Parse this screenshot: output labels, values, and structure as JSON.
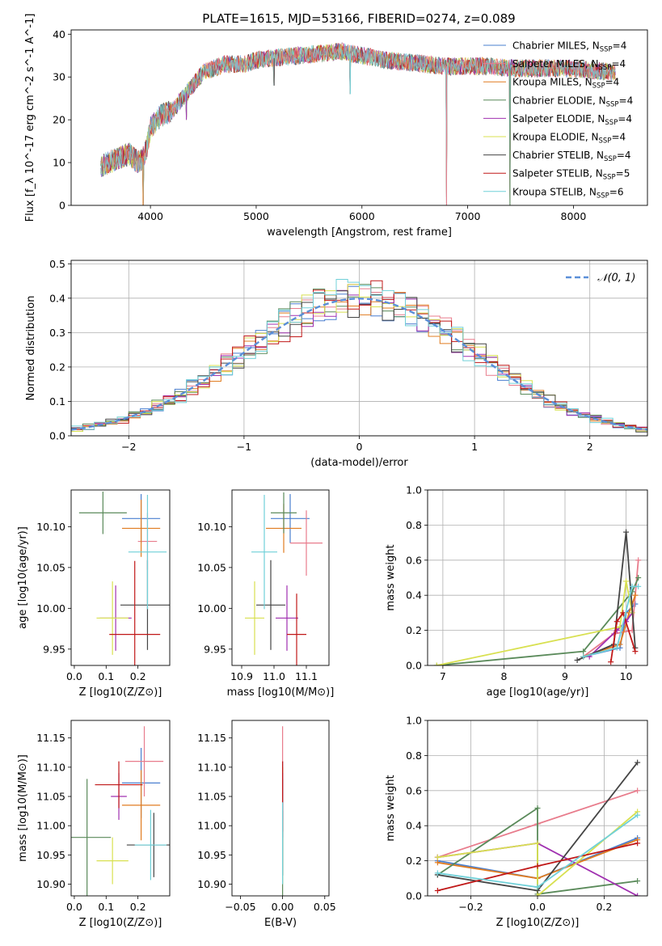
{
  "figure_title": "PLATE=1615, MJD=53166, FIBERID=0274, z=0.089",
  "colors": {
    "series": [
      "#4a7fcf",
      "#e87c8c",
      "#e07c20",
      "#5a8a5a",
      "#a030b0",
      "#d8e050",
      "#444444",
      "#c01818",
      "#70d0d8"
    ],
    "normal_curve": "#5b8fd8",
    "grid": "#b0b0b0"
  },
  "legend_spectrum": [
    {
      "label": "Chabrier MILES, N",
      "sub": "SSP",
      "suffix": "=4"
    },
    {
      "label": "Salpeter MILES, N",
      "sub": "SSP",
      "suffix": "=4"
    },
    {
      "label": "Kroupa MILES, N",
      "sub": "SSP",
      "suffix": "=4"
    },
    {
      "label": "Chabrier ELODIE, N",
      "sub": "SSP",
      "suffix": "=4"
    },
    {
      "label": "Salpeter ELODIE, N",
      "sub": "SSP",
      "suffix": "=4"
    },
    {
      "label": "Kroupa ELODIE, N",
      "sub": "SSP",
      "suffix": "=4"
    },
    {
      "label": "Chabrier STELIB, N",
      "sub": "SSP",
      "suffix": "=4"
    },
    {
      "label": "Salpeter STELIB, N",
      "sub": "SSP",
      "suffix": "=5"
    },
    {
      "label": "Kroupa STELIB, N",
      "sub": "SSP",
      "suffix": "=6"
    }
  ],
  "legend_residual": {
    "label": "𝒩(0, 1)"
  },
  "chart_data": [
    {
      "id": "spectrum",
      "type": "line",
      "title": "PLATE=1615, MJD=53166, FIBERID=0274, z=0.089",
      "xlabel": "wavelength [Angstrom, rest frame]",
      "ylabel": "Flux [f_λ 10^-17 erg cm^-2 s^-1 A^-1]",
      "xlim": [
        3250,
        8700
      ],
      "ylim": [
        0,
        41
      ],
      "xticks": [
        "4000",
        "5000",
        "6000",
        "7000",
        "8000"
      ],
      "yticks": [
        "0",
        "10",
        "20",
        "30",
        "40"
      ],
      "grid": false,
      "legend": "top-right",
      "envelope": {
        "x": [
          3530,
          3600,
          3700,
          3800,
          3880,
          3930,
          3970,
          4000,
          4100,
          4200,
          4300,
          4400,
          4500,
          4600,
          4700,
          4800,
          4900,
          5000,
          5200,
          5400,
          5600,
          5800,
          5900,
          6000,
          6200,
          6400,
          6600,
          6800,
          7000,
          7200,
          7400,
          7600,
          7800,
          8000,
          8200,
          8400
        ],
        "y": [
          9,
          10,
          11,
          12,
          10,
          11,
          14,
          18,
          21,
          22,
          25,
          28,
          31,
          32,
          33,
          33,
          33,
          34,
          34.5,
          35,
          35.5,
          36,
          35.5,
          35,
          34,
          33.5,
          33,
          32.5,
          32.5,
          32.5,
          32,
          32,
          32,
          32,
          31.5,
          31
        ]
      },
      "spikes_down": [
        {
          "x": 3930,
          "y": 0
        },
        {
          "x": 4340,
          "y": 20
        },
        {
          "x": 5170,
          "y": 28
        },
        {
          "x": 5890,
          "y": 26
        },
        {
          "x": 6800,
          "y": 0
        },
        {
          "x": 7400,
          "y": 0
        }
      ]
    },
    {
      "id": "residuals",
      "type": "histogram",
      "xlabel": "(data-model)/error",
      "ylabel": "Normed distribution",
      "xlim": [
        -2.5,
        2.5
      ],
      "ylim": [
        0,
        0.51
      ],
      "xticks": [
        "-2",
        "-1",
        "0",
        "1",
        "2"
      ],
      "yticks": [
        "0.0",
        "0.1",
        "0.2",
        "0.3",
        "0.4",
        "0.5"
      ],
      "grid": true,
      "legend": "top-right",
      "bin_width": 0.1,
      "curve": "normal(0,1)"
    },
    {
      "id": "age_vs_Z",
      "type": "errorbar",
      "xlabel": "Z [log10(Z/Z⊙)]",
      "ylabel": "age [log10(age/yr)]",
      "xlim": [
        -0.01,
        0.3
      ],
      "ylim": [
        9.93,
        10.145
      ],
      "xticks": [
        "0.0",
        "0.1",
        "0.2"
      ],
      "yticks": [
        "9.95",
        "10.00",
        "10.05",
        "10.10"
      ],
      "points": [
        {
          "x": 0.21,
          "y": 10.11,
          "xerr": 0.06,
          "yerr": 0.03
        },
        {
          "x": 0.23,
          "y": 10.082,
          "xerr": 0.03,
          "yerr": 0.035
        },
        {
          "x": 0.21,
          "y": 10.098,
          "xerr": 0.06,
          "yerr": 0.035
        },
        {
          "x": 0.09,
          "y": 10.117,
          "xerr": 0.075,
          "yerr": 0.026
        },
        {
          "x": 0.13,
          "y": 9.988,
          "xerr": 0.05,
          "yerr": 0.04
        },
        {
          "x": 0.12,
          "y": 9.988,
          "xerr": 0.05,
          "yerr": 0.045
        },
        {
          "x": 0.23,
          "y": 10.004,
          "xerr": 0.085,
          "yerr": 0.055
        },
        {
          "x": 0.19,
          "y": 9.968,
          "xerr": 0.08,
          "yerr": 0.09
        },
        {
          "x": 0.23,
          "y": 10.069,
          "xerr": 0.06,
          "yerr": 0.07
        }
      ]
    },
    {
      "id": "age_vs_mass",
      "type": "errorbar",
      "xlabel": "mass [log10(M/M⊙)]",
      "ylabel": "",
      "xlim": [
        10.87,
        11.17
      ],
      "ylim": [
        9.93,
        10.145
      ],
      "xticks": [
        "10.9",
        "11.0",
        "11.1"
      ],
      "yticks": [
        "9.95",
        "10.00",
        "10.05",
        "10.10"
      ],
      "points": [
        {
          "x": 11.05,
          "y": 10.11,
          "xerr": 0.06,
          "yerr": 0.03
        },
        {
          "x": 11.1,
          "y": 10.08,
          "xerr": 0.05,
          "yerr": 0.04
        },
        {
          "x": 11.03,
          "y": 10.098,
          "xerr": 0.055,
          "yerr": 0.03
        },
        {
          "x": 11.03,
          "y": 10.117,
          "xerr": 0.04,
          "yerr": 0.025
        },
        {
          "x": 11.04,
          "y": 9.988,
          "xerr": 0.035,
          "yerr": 0.04
        },
        {
          "x": 10.94,
          "y": 9.988,
          "xerr": 0.03,
          "yerr": 0.045
        },
        {
          "x": 10.99,
          "y": 10.004,
          "xerr": 0.045,
          "yerr": 0.055
        },
        {
          "x": 11.07,
          "y": 9.968,
          "xerr": 0.03,
          "yerr": 0.05
        },
        {
          "x": 10.97,
          "y": 10.069,
          "xerr": 0.04,
          "yerr": 0.07
        }
      ]
    },
    {
      "id": "mass_weight_vs_age",
      "type": "line",
      "xlabel": "age [log10(age/yr)]",
      "ylabel": "mass weight",
      "xlim": [
        6.75,
        10.35
      ],
      "ylim": [
        0,
        1.0
      ],
      "xticks": [
        "7",
        "8",
        "9",
        "10"
      ],
      "yticks": [
        "0.0",
        "0.2",
        "0.4",
        "0.6",
        "0.8",
        "1.0"
      ],
      "grid": true,
      "series": [
        {
          "x": [
            9.3,
            9.9,
            10.0,
            10.15
          ],
          "y": [
            0.05,
            0.1,
            0.3,
            0.35
          ]
        },
        {
          "x": [
            9.3,
            9.8,
            10.1,
            10.2
          ],
          "y": [
            0.05,
            0.18,
            0.2,
            0.6
          ]
        },
        {
          "x": [
            9.3,
            9.9,
            10.05,
            10.15
          ],
          "y": [
            0.05,
            0.12,
            0.3,
            0.4
          ]
        },
        {
          "x": [
            6.9,
            9.3,
            10.1,
            10.2
          ],
          "y": [
            0.0,
            0.08,
            0.42,
            0.5
          ]
        },
        {
          "x": [
            9.4,
            9.85,
            10.0,
            10.1
          ],
          "y": [
            0.05,
            0.2,
            0.25,
            0.3
          ]
        },
        {
          "x": [
            6.9,
            9.9,
            10.0,
            10.1
          ],
          "y": [
            0.0,
            0.22,
            0.48,
            0.3
          ]
        },
        {
          "x": [
            9.2,
            9.8,
            10.0,
            10.15
          ],
          "y": [
            0.03,
            0.12,
            0.76,
            0.1
          ]
        },
        {
          "x": [
            9.75,
            9.85,
            9.95,
            10.15
          ],
          "y": [
            0.02,
            0.25,
            0.3,
            0.08
          ]
        },
        {
          "x": [
            9.3,
            9.85,
            10.1,
            10.2
          ],
          "y": [
            0.05,
            0.1,
            0.45,
            0.45
          ]
        }
      ]
    },
    {
      "id": "mass_vs_Z",
      "type": "errorbar",
      "xlabel": "Z [log10(Z/Z⊙)]",
      "ylabel": "mass [log10(M/M⊙)]",
      "xlim": [
        -0.01,
        0.3
      ],
      "ylim": [
        10.88,
        11.18
      ],
      "xticks": [
        "0.0",
        "0.1",
        "0.2"
      ],
      "yticks": [
        "10.90",
        "10.95",
        "11.00",
        "11.05",
        "11.10",
        "11.15"
      ],
      "points": [
        {
          "x": 0.21,
          "y": 11.073,
          "xerr": 0.06,
          "yerr": 0.06
        },
        {
          "x": 0.22,
          "y": 11.11,
          "xerr": 0.06,
          "yerr": 0.06
        },
        {
          "x": 0.21,
          "y": 11.035,
          "xerr": 0.06,
          "yerr": 0.06
        },
        {
          "x": 0.04,
          "y": 10.98,
          "xerr": 0.075,
          "yerr": 0.1
        },
        {
          "x": 0.14,
          "y": 11.05,
          "xerr": 0.025,
          "yerr": 0.04
        },
        {
          "x": 0.12,
          "y": 10.94,
          "xerr": 0.05,
          "yerr": 0.04
        },
        {
          "x": 0.25,
          "y": 10.967,
          "xerr": 0.085,
          "yerr": 0.055
        },
        {
          "x": 0.14,
          "y": 11.07,
          "xerr": 0.075,
          "yerr": 0.04
        },
        {
          "x": 0.24,
          "y": 10.967,
          "xerr": 0.05,
          "yerr": 0.06
        }
      ]
    },
    {
      "id": "mass_vs_ebv",
      "type": "errorbar",
      "xlabel": "E(B-V)",
      "ylabel": "",
      "xlim": [
        -0.06,
        0.055
      ],
      "ylim": [
        10.88,
        11.18
      ],
      "xticks": [
        "-0.05",
        "0.00",
        "0.05"
      ],
      "yticks": [
        "10.90",
        "10.95",
        "11.00",
        "11.05",
        "11.10",
        "11.15"
      ],
      "points": [
        {
          "x": 0.0,
          "y": 11.05,
          "xerr": 0,
          "yerr": 0.06
        },
        {
          "x": 0.0,
          "y": 11.11,
          "xerr": 0,
          "yerr": 0.06
        },
        {
          "x": 0.0,
          "y": 11.04,
          "xerr": 0,
          "yerr": 0.06
        },
        {
          "x": 0.0,
          "y": 10.98,
          "xerr": 0,
          "yerr": 0.1
        },
        {
          "x": 0.0,
          "y": 11.05,
          "xerr": 0,
          "yerr": 0.04
        },
        {
          "x": 0.0,
          "y": 10.94,
          "xerr": 0,
          "yerr": 0.04
        },
        {
          "x": 0.0,
          "y": 10.97,
          "xerr": 0,
          "yerr": 0.055
        },
        {
          "x": 0.0,
          "y": 11.05,
          "xerr": 0,
          "yerr": 0.06
        },
        {
          "x": 0.0,
          "y": 10.97,
          "xerr": 0,
          "yerr": 0.07
        }
      ]
    },
    {
      "id": "mass_weight_vs_Z",
      "type": "line",
      "xlabel": "Z [log10(Z/Z⊙)]",
      "ylabel": "mass weight",
      "xlim": [
        -0.33,
        0.33
      ],
      "ylim": [
        0,
        1.0
      ],
      "xticks": [
        "-0.2",
        "0.0",
        "0.2"
      ],
      "yticks": [
        "0.0",
        "0.2",
        "0.4",
        "0.6",
        "0.8",
        "1.0"
      ],
      "grid": true,
      "series": [
        {
          "x": [
            -0.3,
            0.0,
            0.3
          ],
          "y": [
            0.2,
            0.1,
            0.33
          ]
        },
        {
          "x": [
            -0.3,
            0.0,
            0.3
          ],
          "y": [
            0.22,
            0.41,
            0.6
          ]
        },
        {
          "x": [
            -0.3,
            0.0,
            0.3
          ],
          "y": [
            0.19,
            0.1,
            0.32
          ]
        },
        {
          "x": [
            -0.3,
            0.0,
            0.0,
            0.3
          ],
          "y": [
            0.12,
            0.5,
            0.01,
            0.085
          ]
        },
        {
          "x": [
            -0.3,
            0.0,
            0.3
          ],
          "y": [
            0.22,
            0.3,
            0.0
          ]
        },
        {
          "x": [
            -0.3,
            0.0,
            0.0,
            0.3
          ],
          "y": [
            0.22,
            0.3,
            0.0,
            0.48
          ]
        },
        {
          "x": [
            -0.3,
            0.0,
            0.3
          ],
          "y": [
            0.12,
            0.03,
            0.76
          ]
        },
        {
          "x": [
            -0.3,
            0.0,
            0.3
          ],
          "y": [
            0.03,
            0.17,
            0.3
          ]
        },
        {
          "x": [
            -0.3,
            0.0,
            0.3
          ],
          "y": [
            0.13,
            0.05,
            0.46
          ]
        }
      ]
    }
  ]
}
